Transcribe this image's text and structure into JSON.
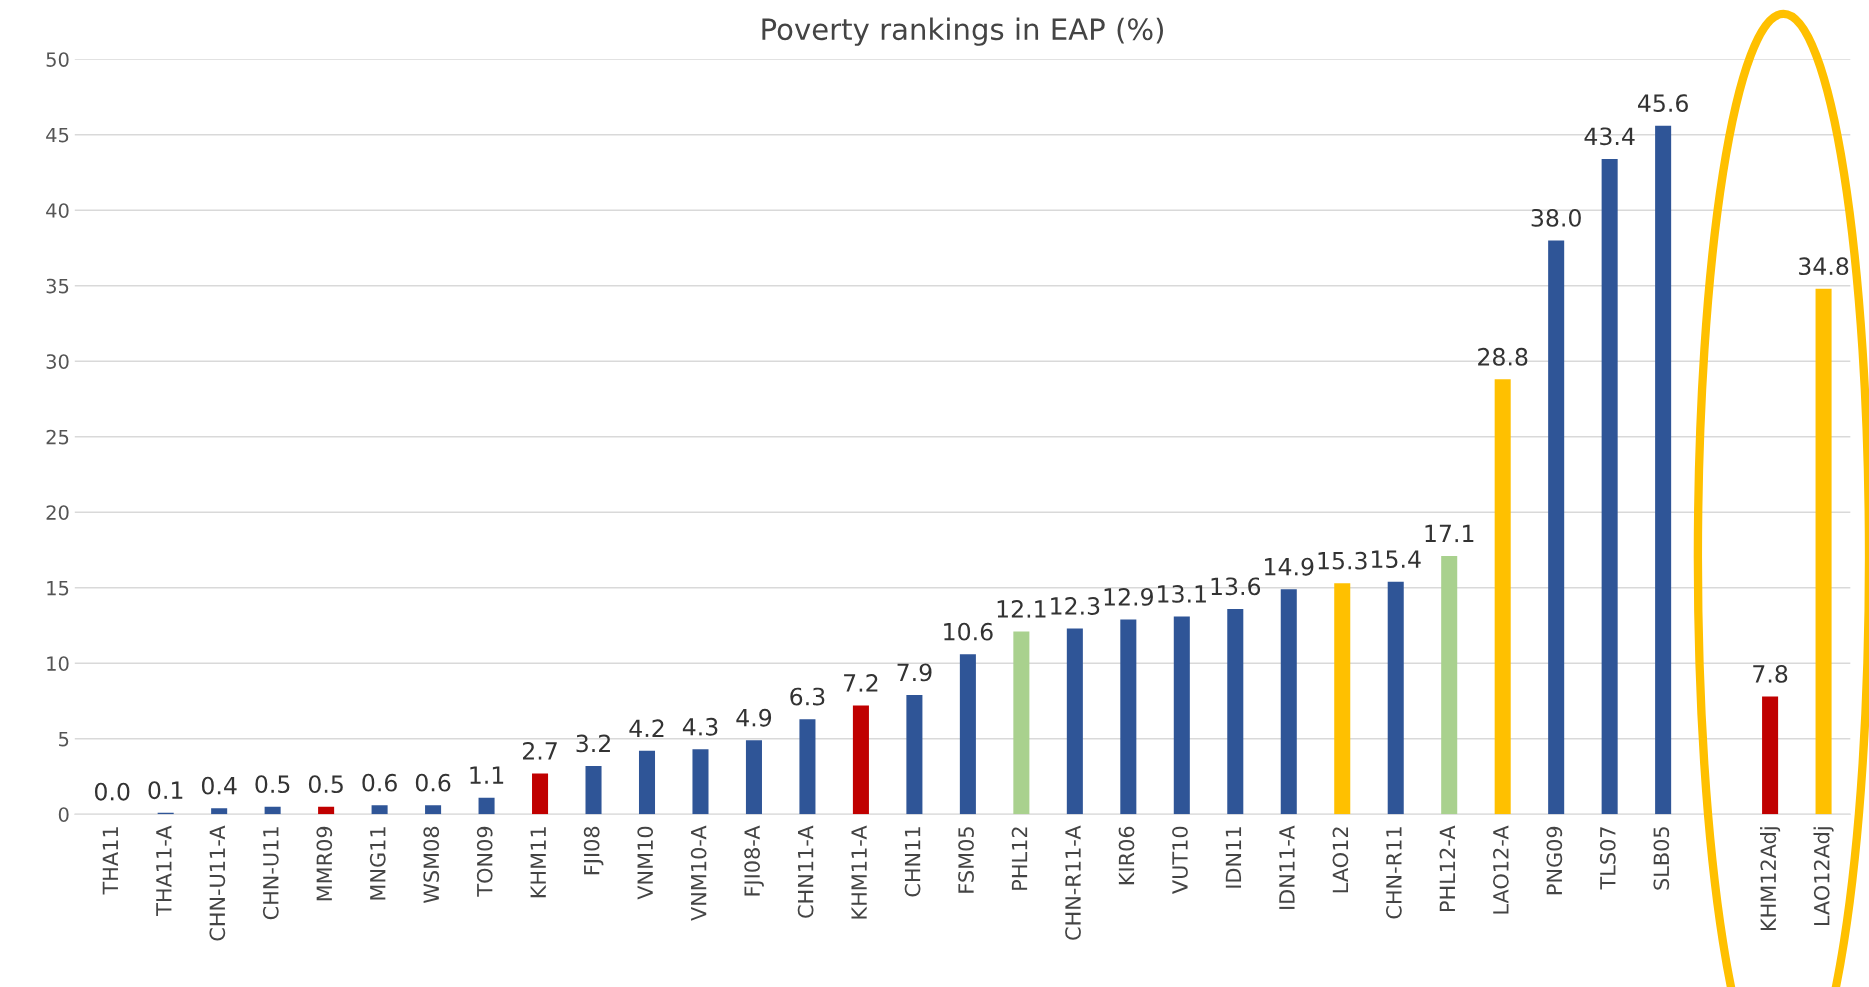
{
  "chart_data": {
    "type": "bar",
    "title": "Poverty rankings in EAP (%)",
    "categories": [
      "THA11",
      "THA11-A",
      "CHN-U11-A",
      "CHN-U11",
      "MMR09",
      "MNG11",
      "WSM08",
      "TON09",
      "KHM11",
      "FJI08",
      "VNM10",
      "VNM10-A",
      "FJI08-A",
      "CHN11-A",
      "KHM11-A",
      "CHN11",
      "FSM05",
      "PHL12",
      "CHN-R11-A",
      "KIR06",
      "VUT10",
      "IDN11",
      "IDN11-A",
      "LAO12",
      "CHN-R11",
      "PHL12-A",
      "LAO12-A",
      "PNG09",
      "TLS07",
      "SLB05",
      null,
      "KHM12Adj",
      "LAO12Adj"
    ],
    "values": [
      0.0,
      0.1,
      0.4,
      0.5,
      0.5,
      0.6,
      0.6,
      1.1,
      2.7,
      3.2,
      4.2,
      4.3,
      4.9,
      6.3,
      7.2,
      7.9,
      10.6,
      12.1,
      12.3,
      12.9,
      13.1,
      13.6,
      14.9,
      15.3,
      15.4,
      17.1,
      28.8,
      38.0,
      43.4,
      45.6,
      null,
      7.8,
      34.8
    ],
    "value_labels": [
      "0.0",
      "0.1",
      "0.4",
      "0.5",
      "0.5",
      "0.6",
      "0.6",
      "1.1",
      "2.7",
      "3.2",
      "4.2",
      "4.3",
      "4.9",
      "6.3",
      "7.2",
      "7.9",
      "10.6",
      "12.1",
      "12.3",
      "12.9",
      "13.1",
      "13.6",
      "14.9",
      "15.3",
      "15.4",
      "17.1",
      "28.8",
      "38.0",
      "43.4",
      "45.6",
      null,
      "7.8",
      "34.8"
    ],
    "colors": [
      "#2f5597",
      "#2f5597",
      "#2f5597",
      "#2f5597",
      "#c00000",
      "#2f5597",
      "#2f5597",
      "#2f5597",
      "#c00000",
      "#2f5597",
      "#2f5597",
      "#2f5597",
      "#2f5597",
      "#2f5597",
      "#c00000",
      "#2f5597",
      "#2f5597",
      "#a9d18e",
      "#2f5597",
      "#2f5597",
      "#2f5597",
      "#2f5597",
      "#2f5597",
      "#ffc000",
      "#2f5597",
      "#a9d18e",
      "#ffc000",
      "#2f5597",
      "#2f5597",
      "#2f5597",
      "#2f5597",
      "#c00000",
      "#ffc000"
    ],
    "ylim": [
      0,
      50
    ],
    "yticks": [
      0,
      5,
      10,
      15,
      20,
      25,
      30,
      35,
      40,
      45,
      50
    ],
    "grid": "y",
    "legend": false
  }
}
